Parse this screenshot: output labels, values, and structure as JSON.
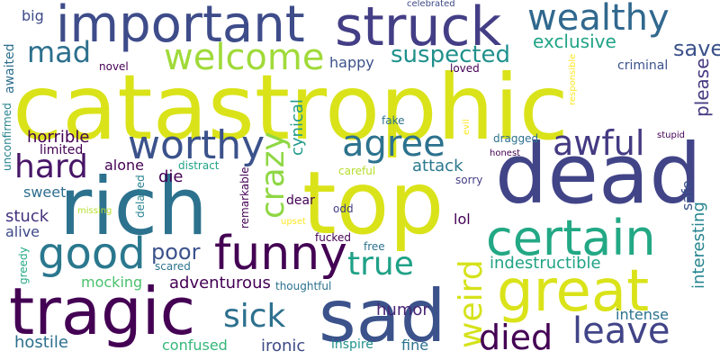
{
  "words": [
    {
      "text": "catastrophic",
      "color": "#dae319"
    },
    {
      "text": "dead",
      "color": "#414487"
    },
    {
      "text": "top",
      "color": "#dae319"
    },
    {
      "text": "rich",
      "color": "#2c728e"
    },
    {
      "text": "sad",
      "color": "#3b528b"
    },
    {
      "text": "tragic",
      "color": "#440154"
    },
    {
      "text": "important",
      "color": "#3e4c8a"
    },
    {
      "text": "struck",
      "color": "#433e85"
    },
    {
      "text": "great",
      "color": "#dae319"
    },
    {
      "text": "certain",
      "color": "#22a884"
    },
    {
      "text": "funny",
      "color": "#440154"
    },
    {
      "text": "good",
      "color": "#2a788e"
    },
    {
      "text": "worthy",
      "color": "#3b528b"
    },
    {
      "text": "wealthy",
      "color": "#31688e"
    },
    {
      "text": "welcome",
      "color": "#a0da39"
    },
    {
      "text": "agree",
      "color": "#2c728e"
    },
    {
      "text": "awful",
      "color": "#443a83"
    },
    {
      "text": "weird",
      "color": "#d5e21a"
    },
    {
      "text": "leave",
      "color": "#414487"
    },
    {
      "text": "died",
      "color": "#440154"
    },
    {
      "text": "crazy",
      "color": "#8fd744"
    },
    {
      "text": "hard",
      "color": "#481668"
    },
    {
      "text": "true",
      "color": "#1fa187"
    },
    {
      "text": "sick",
      "color": "#2d708e"
    },
    {
      "text": "mad",
      "color": "#2d708e"
    },
    {
      "text": "suspected",
      "color": "#21918c"
    },
    {
      "text": "save",
      "color": "#3b528b"
    },
    {
      "text": "poor",
      "color": "#3b528b"
    },
    {
      "text": "please",
      "color": "#443a83"
    },
    {
      "text": "exclusive",
      "color": "#20a386"
    },
    {
      "text": "interesting",
      "color": "#25848e"
    },
    {
      "text": "adventurous",
      "color": "#440154"
    },
    {
      "text": "cynical",
      "color": "#1f9a8a"
    },
    {
      "text": "indestructible",
      "color": "#20a386"
    },
    {
      "text": "horrible",
      "color": "#440154"
    },
    {
      "text": "hostile",
      "color": "#2d708e"
    },
    {
      "text": "ironic",
      "color": "#3e4a89"
    },
    {
      "text": "attack",
      "color": "#2a788e"
    },
    {
      "text": "happy",
      "color": "#3b528b"
    },
    {
      "text": "humor",
      "color": "#482576"
    },
    {
      "text": "intense",
      "color": "#2c728e"
    },
    {
      "text": "confused",
      "color": "#35b779"
    },
    {
      "text": "mocking",
      "color": "#4ac16d"
    },
    {
      "text": "stuck",
      "color": "#46327e"
    },
    {
      "text": "alive",
      "color": "#3e4a89"
    },
    {
      "text": "alone",
      "color": "#440154"
    },
    {
      "text": "die",
      "color": "#440154"
    },
    {
      "text": "sweet",
      "color": "#2e6e8e"
    },
    {
      "text": "safe",
      "color": "#3b528b"
    },
    {
      "text": "big",
      "color": "#3e4a89"
    },
    {
      "text": "lol",
      "color": "#440154"
    },
    {
      "text": "criminal",
      "color": "#3b528b"
    },
    {
      "text": "fine",
      "color": "#2c728e"
    },
    {
      "text": "inspire",
      "color": "#21918c"
    },
    {
      "text": "awaited",
      "color": "#2e6e8e"
    },
    {
      "text": "limited",
      "color": "#440154"
    },
    {
      "text": "dear",
      "color": "#440154"
    },
    {
      "text": "novel",
      "color": "#440154"
    },
    {
      "text": "loved",
      "color": "#440154"
    },
    {
      "text": "unconfirmed",
      "color": "#26828e"
    },
    {
      "text": "greedy",
      "color": "#22a884"
    },
    {
      "text": "scared",
      "color": "#2c728e"
    },
    {
      "text": "thoughtful",
      "color": "#2c728e"
    },
    {
      "text": "fucked",
      "color": "#440154"
    },
    {
      "text": "free",
      "color": "#2c728e"
    },
    {
      "text": "odd",
      "color": "#433e85"
    },
    {
      "text": "sorry",
      "color": "#433e85"
    },
    {
      "text": "careful",
      "color": "#b5de2b"
    },
    {
      "text": "distract",
      "color": "#20a386"
    },
    {
      "text": "remarkable",
      "color": "#440154"
    },
    {
      "text": "delayed",
      "color": "#26828e"
    },
    {
      "text": "missing",
      "color": "#b5de2b"
    },
    {
      "text": "upset",
      "color": "#fde725"
    },
    {
      "text": "fake",
      "color": "#2c728e"
    },
    {
      "text": "dragged",
      "color": "#2c728e"
    },
    {
      "text": "honest",
      "color": "#440154"
    },
    {
      "text": "stupid",
      "color": "#440154"
    },
    {
      "text": "evil",
      "color": "#fde725"
    },
    {
      "text": "responsible",
      "color": "#fde725"
    },
    {
      "text": "celebrated",
      "color": "#3e4a89"
    }
  ]
}
